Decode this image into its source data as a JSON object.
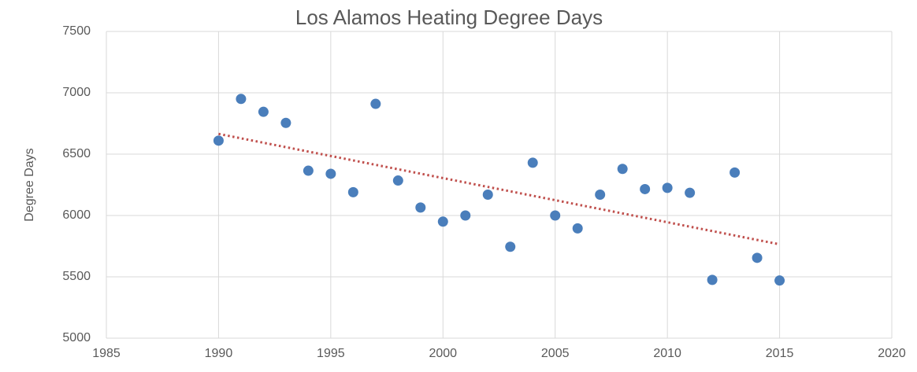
{
  "chart_data": {
    "type": "scatter",
    "title": "Los Alamos Heating Degree Days",
    "y_label": "Degree Days",
    "x": [
      1990,
      1991,
      1992,
      1993,
      1994,
      1995,
      1996,
      1997,
      1998,
      1999,
      2000,
      2001,
      2002,
      2003,
      2004,
      2005,
      2006,
      2007,
      2008,
      2009,
      2010,
      2011,
      2012,
      2013,
      2014,
      2015
    ],
    "values": [
      6610,
      6950,
      6845,
      6755,
      6365,
      6340,
      6190,
      6910,
      6285,
      6065,
      5950,
      6000,
      6170,
      5745,
      6430,
      6000,
      5895,
      6170,
      6380,
      6215,
      6225,
      6185,
      5475,
      6350,
      5655,
      5470
    ],
    "color": "#4a7ebb",
    "trendline": {
      "x": [
        1990,
        2015
      ],
      "values": [
        6665,
        5765
      ],
      "color": "#c0504d"
    },
    "xlim": [
      1985,
      2020
    ],
    "xticks": [
      1985,
      1990,
      1995,
      2000,
      2005,
      2010,
      2015,
      2020
    ],
    "ylim": [
      5000,
      7500
    ],
    "yticks": [
      5000,
      5500,
      6000,
      6500,
      7000,
      7500
    ],
    "grid": true
  }
}
